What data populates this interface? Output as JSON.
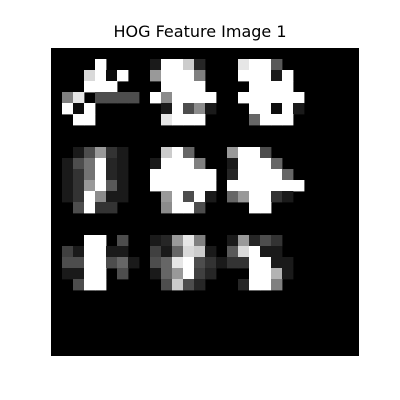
{
  "chart_data": {
    "type": "heatmap",
    "title": "HOG Feature Image 1",
    "xlabel": "",
    "ylabel": "",
    "axes_visible": false,
    "grid": false,
    "colormap": "gray",
    "value_range": [
      0,
      1
    ],
    "rows": 28,
    "cols": 28,
    "cell_grid": [
      3,
      3
    ],
    "values": [
      [
        0,
        0,
        0,
        0,
        0,
        0,
        0,
        0,
        0,
        0,
        0,
        0,
        0,
        0,
        0,
        0,
        0,
        0,
        0,
        0,
        0,
        0,
        0,
        0,
        0,
        0,
        0,
        0
      ],
      [
        0,
        0,
        0,
        0,
        1,
        0,
        0,
        0,
        0,
        0.1,
        1,
        1,
        0.8,
        0.15,
        0,
        0,
        0,
        0.9,
        1,
        1,
        0.35,
        0,
        0,
        0,
        0,
        0,
        0,
        0
      ],
      [
        0,
        0,
        0,
        0.85,
        1,
        0.05,
        1,
        0,
        0,
        0.6,
        1,
        1,
        1,
        0.5,
        0,
        0,
        0,
        1,
        1,
        1,
        0.1,
        1,
        0,
        0,
        0,
        0,
        0,
        0
      ],
      [
        0,
        0,
        0,
        1,
        1,
        1,
        0,
        0,
        0,
        0,
        1,
        1,
        1,
        1,
        0,
        0,
        0,
        0,
        1,
        1,
        1,
        1,
        0,
        0,
        0,
        0,
        0,
        0
      ],
      [
        0,
        0.5,
        0.9,
        0,
        0.3,
        0.3,
        0.3,
        0.3,
        0,
        1,
        0.55,
        1,
        1,
        1,
        1,
        0,
        0,
        1,
        1,
        1,
        1,
        1,
        1,
        0,
        0,
        0,
        0,
        0
      ],
      [
        0,
        1,
        0.05,
        1,
        0,
        0,
        0,
        0,
        0,
        0,
        0.1,
        1,
        0.3,
        0.55,
        0.1,
        0,
        0,
        0,
        1,
        1,
        0.05,
        1,
        0.1,
        0,
        0,
        0,
        0,
        0
      ],
      [
        0,
        0,
        1,
        1,
        0,
        0,
        0,
        0,
        0,
        0,
        0.9,
        1,
        1,
        1,
        0,
        0,
        0,
        0,
        0.4,
        1,
        1,
        1,
        0,
        0,
        0,
        0,
        0,
        0
      ],
      [
        0,
        0,
        0,
        0,
        0,
        0,
        0,
        0,
        0,
        0,
        0,
        0,
        0,
        0,
        0,
        0,
        0,
        0,
        0,
        0,
        0,
        0,
        0,
        0,
        0,
        0,
        0,
        0
      ],
      [
        0,
        0,
        0,
        0,
        0,
        0,
        0,
        0,
        0,
        0,
        0,
        0,
        0,
        0,
        0,
        0,
        0,
        0,
        0,
        0,
        0,
        0,
        0,
        0,
        0,
        0,
        0,
        0
      ],
      [
        0,
        0,
        0.1,
        0.3,
        0.6,
        0.2,
        0.1,
        0,
        0,
        0,
        0.8,
        1,
        0.4,
        0,
        0,
        0,
        0.6,
        1,
        1,
        0.3,
        0,
        0,
        0,
        0,
        0,
        0,
        0,
        0
      ],
      [
        0,
        0.1,
        0.3,
        0.45,
        1,
        0.15,
        0.1,
        0,
        0,
        0.1,
        1,
        1,
        1,
        0.5,
        0,
        0,
        0.1,
        1,
        1,
        1,
        0.4,
        0,
        0,
        0,
        0,
        0,
        0,
        0
      ],
      [
        0,
        0.1,
        0.2,
        0.45,
        1,
        0.15,
        0.1,
        0,
        0,
        1,
        1,
        1,
        1,
        1,
        1,
        0,
        0.15,
        1,
        1,
        1,
        1,
        0.4,
        0,
        0,
        0,
        0,
        0,
        0
      ],
      [
        0,
        0.1,
        0.2,
        0.6,
        1,
        0.35,
        0.1,
        0,
        0,
        1,
        1,
        1,
        1,
        1,
        1,
        0,
        1,
        1,
        1,
        1,
        1,
        1,
        1,
        0,
        0,
        0,
        0,
        0
      ],
      [
        0,
        0.1,
        0.2,
        1,
        0.55,
        0.1,
        0.1,
        0,
        0,
        0,
        0.6,
        1,
        0.3,
        1,
        0.1,
        0,
        0.4,
        0.6,
        1,
        1,
        0.2,
        0.1,
        0,
        0,
        0,
        0,
        0,
        0
      ],
      [
        0,
        0,
        0.3,
        1,
        0.2,
        0.2,
        0,
        0,
        0,
        0,
        0.55,
        1,
        1,
        0.3,
        0,
        0,
        0,
        0,
        1,
        1,
        0,
        0,
        0,
        0,
        0,
        0,
        0,
        0
      ],
      [
        0,
        0,
        0,
        0,
        0,
        0,
        0,
        0,
        0,
        0,
        0,
        0,
        0,
        0,
        0,
        0,
        0,
        0,
        0,
        0,
        0,
        0,
        0,
        0,
        0,
        0,
        0,
        0
      ],
      [
        0,
        0,
        0,
        0,
        0,
        0,
        0,
        0,
        0,
        0,
        0,
        0,
        0,
        0,
        0,
        0,
        0,
        0,
        0,
        0,
        0,
        0,
        0,
        0,
        0,
        0,
        0,
        0
      ],
      [
        0,
        0,
        0,
        1,
        1,
        0,
        0.3,
        0,
        0,
        0.1,
        0.15,
        0.6,
        0.9,
        0.5,
        0,
        0,
        0.1,
        0.6,
        0.15,
        0.3,
        0.2,
        0,
        0,
        0,
        0,
        0,
        0,
        0
      ],
      [
        0,
        0.25,
        0.1,
        1,
        1,
        0.1,
        0.1,
        0,
        0,
        0.25,
        0.1,
        0.4,
        0.85,
        0.8,
        0.1,
        0,
        0.35,
        0.85,
        1,
        0.1,
        0.1,
        0,
        0,
        0,
        0,
        0,
        0,
        0
      ],
      [
        0,
        0.3,
        0.3,
        1,
        1,
        0.3,
        0.4,
        0.1,
        0,
        0.3,
        0.4,
        0.9,
        1,
        0.3,
        0.2,
        0.1,
        0.2,
        0.2,
        1,
        1,
        0.1,
        0.1,
        0,
        0,
        0,
        0,
        0,
        0
      ],
      [
        0,
        0.1,
        0.1,
        1,
        1,
        0,
        0.3,
        0,
        0,
        0.1,
        0.4,
        0.6,
        1,
        0.25,
        0.15,
        0,
        0,
        0,
        1,
        1,
        0.7,
        0.1,
        0,
        0,
        0,
        0,
        0,
        0
      ],
      [
        0,
        0,
        0.3,
        1,
        1,
        0,
        0,
        0,
        0,
        0,
        0.3,
        0.8,
        0.3,
        0.15,
        0,
        0,
        0,
        0.15,
        1,
        1,
        0.5,
        0,
        0,
        0,
        0,
        0,
        0,
        0
      ],
      [
        0,
        0,
        0,
        0,
        0,
        0,
        0,
        0,
        0,
        0,
        0,
        0,
        0,
        0,
        0,
        0,
        0,
        0,
        0,
        0,
        0,
        0,
        0,
        0,
        0,
        0,
        0,
        0
      ],
      [
        0,
        0,
        0,
        0,
        0,
        0,
        0,
        0,
        0,
        0,
        0,
        0,
        0,
        0,
        0,
        0,
        0,
        0,
        0,
        0,
        0,
        0,
        0,
        0,
        0,
        0,
        0,
        0
      ],
      [
        0,
        0,
        0,
        0,
        0,
        0,
        0,
        0,
        0,
        0,
        0,
        0,
        0,
        0,
        0,
        0,
        0,
        0,
        0,
        0,
        0,
        0,
        0,
        0,
        0,
        0,
        0,
        0
      ],
      [
        0,
        0,
        0,
        0,
        0,
        0,
        0,
        0,
        0,
        0,
        0,
        0,
        0,
        0,
        0,
        0,
        0,
        0,
        0,
        0,
        0,
        0,
        0,
        0,
        0,
        0,
        0,
        0
      ],
      [
        0,
        0,
        0,
        0,
        0,
        0,
        0,
        0,
        0,
        0,
        0,
        0,
        0,
        0,
        0,
        0,
        0,
        0,
        0,
        0,
        0,
        0,
        0,
        0,
        0,
        0,
        0,
        0
      ],
      [
        0,
        0,
        0,
        0,
        0,
        0,
        0,
        0,
        0,
        0,
        0,
        0,
        0,
        0,
        0,
        0,
        0,
        0,
        0,
        0,
        0,
        0,
        0,
        0,
        0,
        0,
        0,
        0
      ]
    ]
  }
}
